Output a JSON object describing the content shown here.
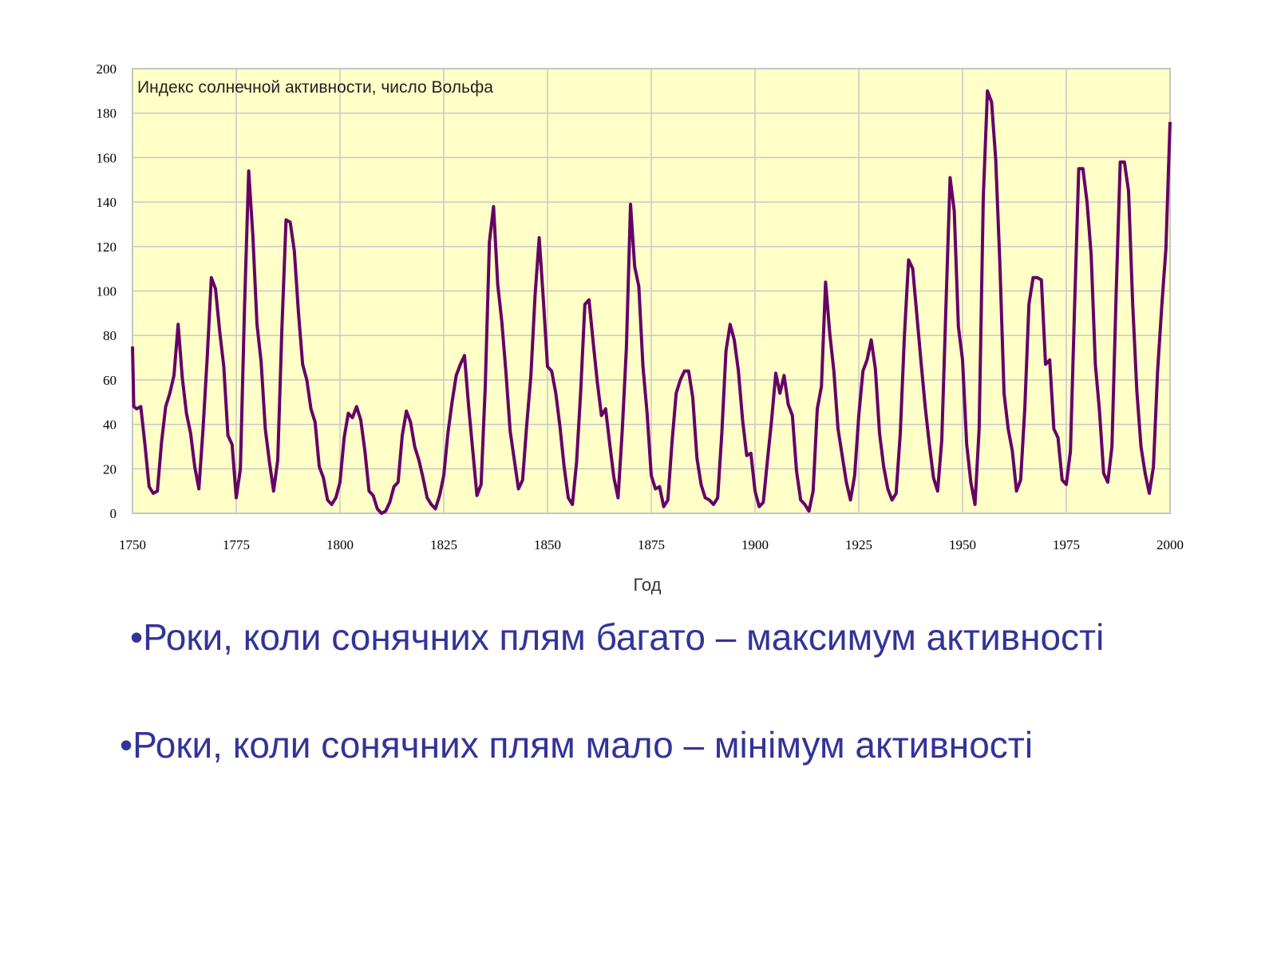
{
  "chart_data": {
    "type": "line",
    "title": "Индекс солнечной активности, число Вольфа",
    "xlabel": "Год",
    "ylabel": "",
    "xlim": [
      1750,
      2000
    ],
    "ylim": [
      0,
      200
    ],
    "x_ticks": [
      1750,
      1775,
      1800,
      1825,
      1850,
      1875,
      1900,
      1925,
      1950,
      1975,
      2000
    ],
    "y_ticks": [
      0,
      20,
      40,
      60,
      80,
      100,
      120,
      140,
      160,
      180,
      200
    ],
    "grid": true,
    "background_color": "#ffffc8",
    "line_color": "#660066",
    "series": [
      {
        "x": [
          1750,
          1750.3,
          1751,
          1752,
          1753,
          1754,
          1755,
          1756,
          1757,
          1758,
          1759,
          1760,
          1761,
          1762,
          1763,
          1764,
          1765,
          1766,
          1767,
          1768,
          1769,
          1770,
          1771,
          1772,
          1773,
          1774,
          1775,
          1776,
          1777,
          1778,
          1779,
          1780,
          1781,
          1782,
          1783,
          1784,
          1785,
          1786,
          1787,
          1788,
          1789,
          1790,
          1791,
          1792,
          1793,
          1794,
          1795,
          1796,
          1797,
          1798,
          1799,
          1800,
          1801,
          1802,
          1803,
          1804,
          1805,
          1806,
          1807,
          1808,
          1809,
          1810,
          1811,
          1812,
          1813,
          1814,
          1815,
          1816,
          1817,
          1818,
          1819,
          1820,
          1821,
          1822,
          1823,
          1824,
          1825,
          1826,
          1827,
          1828,
          1829,
          1830,
          1831,
          1832,
          1833,
          1834,
          1835,
          1836,
          1837,
          1838,
          1839,
          1840,
          1841,
          1842,
          1843,
          1844,
          1845,
          1846,
          1847,
          1848,
          1849,
          1850,
          1851,
          1852,
          1853,
          1854,
          1855,
          1856,
          1857,
          1858,
          1859,
          1860,
          1861,
          1862,
          1863,
          1864,
          1865,
          1866,
          1867,
          1868,
          1869,
          1870,
          1871,
          1872,
          1873,
          1874,
          1875,
          1876,
          1877,
          1878,
          1879,
          1880,
          1881,
          1882,
          1883,
          1884,
          1885,
          1886,
          1887,
          1888,
          1889,
          1890,
          1891,
          1892,
          1893,
          1894,
          1895,
          1896,
          1897,
          1898,
          1899,
          1900,
          1901,
          1902,
          1903,
          1904,
          1905,
          1906,
          1907,
          1908,
          1909,
          1910,
          1911,
          1912,
          1913,
          1914,
          1915,
          1916,
          1917,
          1918,
          1919,
          1920,
          1921,
          1922,
          1923,
          1924,
          1925,
          1926,
          1927,
          1928,
          1929,
          1930,
          1931,
          1932,
          1933,
          1934,
          1935,
          1936,
          1937,
          1938,
          1939,
          1940,
          1941,
          1942,
          1943,
          1944,
          1945,
          1946,
          1947,
          1948,
          1949,
          1950,
          1951,
          1952,
          1953,
          1954,
          1955,
          1956,
          1957,
          1958,
          1959,
          1960,
          1961,
          1962,
          1963,
          1964,
          1965,
          1966,
          1967,
          1968,
          1969,
          1970,
          1971,
          1972,
          1973,
          1974,
          1975,
          1976,
          1977,
          1978,
          1979,
          1980,
          1981,
          1982,
          1983,
          1984,
          1985,
          1986,
          1987,
          1988,
          1989,
          1990,
          1991,
          1992,
          1993,
          1994,
          1995,
          1996,
          1997,
          1998,
          1999,
          2000
        ],
        "values": [
          75,
          48,
          47,
          48,
          31,
          12,
          9,
          10,
          32,
          48,
          54,
          62,
          85,
          61,
          45,
          36,
          21,
          11,
          38,
          70,
          106,
          101,
          82,
          66,
          35,
          31,
          7,
          20,
          93,
          154,
          125,
          85,
          68,
          38,
          23,
          10,
          24,
          83,
          132,
          131,
          118,
          90,
          67,
          60,
          47,
          41,
          21,
          16,
          6,
          4,
          7,
          14,
          34,
          45,
          43,
          48,
          42,
          28,
          10,
          8,
          2,
          0,
          1,
          5,
          12,
          14,
          35,
          46,
          41,
          30,
          24,
          16,
          7,
          4,
          2,
          8,
          17,
          36,
          50,
          62,
          67,
          71,
          48,
          28,
          8,
          13,
          57,
          122,
          138,
          103,
          86,
          63,
          37,
          24,
          11,
          15,
          40,
          62,
          98,
          124,
          96,
          66,
          64,
          54,
          39,
          21,
          7,
          4,
          23,
          55,
          94,
          96,
          77,
          59,
          44,
          47,
          31,
          16,
          7,
          37,
          74,
          139,
          111,
          102,
          66,
          45,
          17,
          11,
          12,
          3,
          6,
          32,
          54,
          60,
          64,
          64,
          52,
          25,
          13,
          7,
          6,
          4,
          7,
          36,
          73,
          85,
          78,
          64,
          42,
          26,
          27,
          10,
          3,
          5,
          24,
          42,
          63,
          54,
          62,
          49,
          44,
          19,
          6,
          4,
          1,
          10,
          47,
          57,
          104,
          81,
          64,
          38,
          26,
          14,
          6,
          17,
          44,
          64,
          69,
          78,
          65,
          36,
          21,
          11,
          6,
          9,
          36,
          80,
          114,
          110,
          89,
          68,
          48,
          31,
          16,
          10,
          33,
          93,
          151,
          136,
          84,
          69,
          31,
          14,
          4,
          38,
          142,
          190,
          185,
          159,
          112,
          54,
          38,
          28,
          10,
          15,
          47,
          94,
          106,
          106,
          105,
          67,
          69,
          38,
          34,
          15,
          13,
          28,
          93,
          155,
          155,
          140,
          116,
          67,
          46,
          18,
          14,
          30,
          98,
          158,
          158,
          145,
          94,
          55,
          30,
          18,
          9,
          21,
          64,
          93,
          119,
          176
        ],
        "line_color": "#660066"
      }
    ]
  },
  "bullets": [
    "•Роки, коли сонячних плям багато – максимум активності",
    "•Роки, коли сонячних плям мало – мінімум активності"
  ]
}
